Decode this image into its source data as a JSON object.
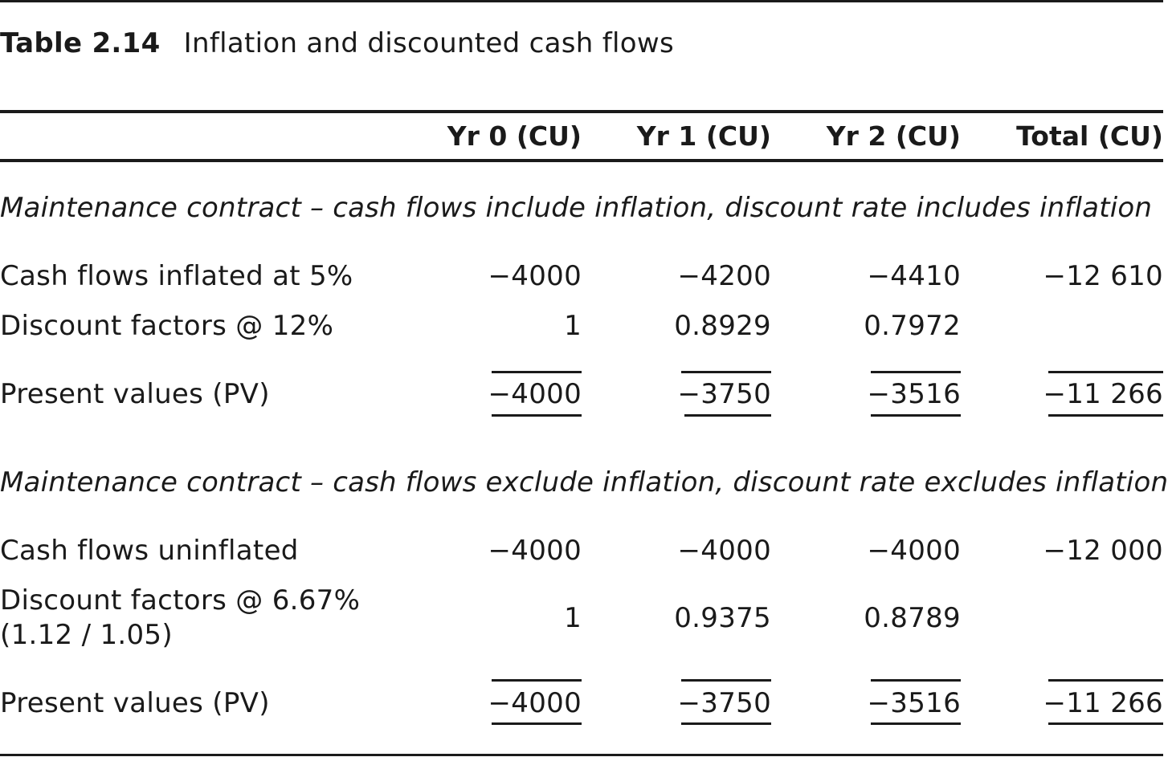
{
  "caption": {
    "number": "Table 2.14",
    "title": "Inflation and discounted cash flows"
  },
  "columns": [
    "Yr 0 (CU)",
    "Yr 1 (CU)",
    "Yr 2 (CU)",
    "Total (CU)"
  ],
  "sections": [
    {
      "title": "Maintenance contract – cash flows include inflation, discount rate includes inflation",
      "rows": [
        {
          "label": "Cash flows inflated at 5%",
          "values": [
            "−4000",
            "−4200",
            "−4410",
            "−12 610"
          ]
        },
        {
          "label": "Discount factors @ 12%",
          "values": [
            "1",
            "0.8929",
            "0.7972",
            ""
          ]
        },
        {
          "label": "Present values (PV)",
          "values": [
            "−4000",
            "−3750",
            "−3516",
            "−11 266"
          ]
        }
      ]
    },
    {
      "title": "Maintenance contract – cash flows exclude inflation, discount rate excludes inflation",
      "rows": [
        {
          "label": "Cash flows uninflated",
          "values": [
            "−4000",
            "−4000",
            "−4000",
            "−12 000"
          ]
        },
        {
          "label_line1": "Discount factors @ 6.67%",
          "label_line2": "(1.12 / 1.05)",
          "values": [
            "1",
            "0.9375",
            "0.8789",
            ""
          ]
        },
        {
          "label": "Present values (PV)",
          "values": [
            "−4000",
            "−3750",
            "−3516",
            "−11 266"
          ]
        }
      ]
    }
  ]
}
